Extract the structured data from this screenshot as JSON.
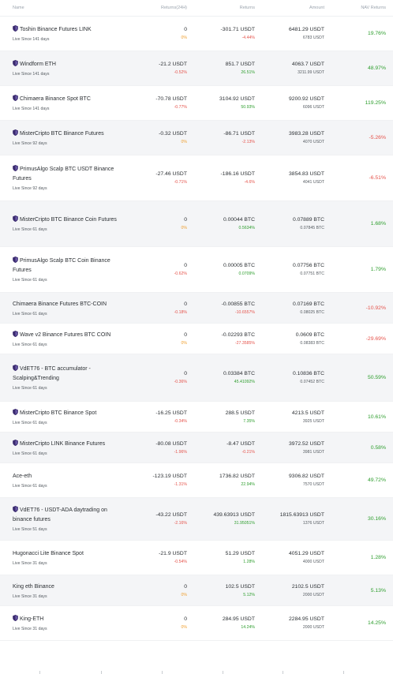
{
  "header": {
    "name": "Name",
    "returns_24h": "Returns(24H)",
    "returns": "Returns",
    "amount": "Amount",
    "nav_returns": "NAV Returns"
  },
  "rows": [
    {
      "name": "Toshin Binance Futures LINK",
      "icon": true,
      "live": "Live Since 141 days",
      "ret24": "0",
      "ret24_pct": "0%",
      "ret24_cls": "zero",
      "ret": "-301.71 USDT",
      "ret_pct": "-4.44%",
      "ret_cls": "neg",
      "amount": "6481.29 USDT",
      "amount_sub": "6783 USDT",
      "nav": "19.76%",
      "nav_cls": "pos"
    },
    {
      "name": "Windform ETH",
      "icon": true,
      "live": "Live Since 141 days",
      "ret24": "-21.2 USDT",
      "ret24_pct": "-0.52%",
      "ret24_cls": "neg",
      "ret": "851.7 USDT",
      "ret_pct": "26.51%",
      "ret_cls": "pos",
      "amount": "4063.7 USDT",
      "amount_sub": "3211.99 USDT",
      "nav": "48.97%",
      "nav_cls": "pos"
    },
    {
      "name": "Chimaera Binance Spot BTC",
      "icon": true,
      "live": "Live Since 141 days",
      "ret24": "-70.78 USDT",
      "ret24_pct": "-0.77%",
      "ret24_cls": "neg",
      "ret": "3104.92 USDT",
      "ret_pct": "50.93%",
      "ret_cls": "pos",
      "amount": "9200.92 USDT",
      "amount_sub": "6096 USDT",
      "nav": "119.25%",
      "nav_cls": "pos"
    },
    {
      "name": "MisterCripto BTC Binance Futures",
      "icon": true,
      "live": "Live Since 92 days",
      "ret24": "-0.32 USDT",
      "ret24_pct": "0%",
      "ret24_cls": "zero",
      "ret": "-86.71 USDT",
      "ret_pct": "-2.13%",
      "ret_cls": "neg",
      "amount": "3983.28 USDT",
      "amount_sub": "4070 USDT",
      "nav": "-5.26%",
      "nav_cls": "neg"
    },
    {
      "name": "PrimusAlgo Scalp BTC USDT Binance Futures",
      "icon": true,
      "live": "Live Since 92 days",
      "ret24": "-27.46 USDT",
      "ret24_pct": "-0.71%",
      "ret24_cls": "neg",
      "ret": "-186.16 USDT",
      "ret_pct": "-4.6%",
      "ret_cls": "neg",
      "amount": "3854.83 USDT",
      "amount_sub": "4041 USDT",
      "nav": "-6.51%",
      "nav_cls": "neg"
    },
    {
      "name": "MisterCripto BTC Binance Coin Futures",
      "icon": true,
      "live": "Live Since 61 days",
      "ret24": "0",
      "ret24_pct": "0%",
      "ret24_cls": "zero",
      "ret": "0.00044 BTC",
      "ret_pct": "0.5634%",
      "ret_cls": "pos",
      "amount": "0.07889 BTC",
      "amount_sub": "0.07845 BTC",
      "nav": "1.68%",
      "nav_cls": "pos"
    },
    {
      "name": "PrimusAlgo Scalp BTC Coin Binance Futures",
      "icon": true,
      "live": "Live Since 61 days",
      "ret24": "0",
      "ret24_pct": "-0.62%",
      "ret24_cls": "neg",
      "ret": "0.00005 BTC",
      "ret_pct": "0.0709%",
      "ret_cls": "pos",
      "amount": "0.07756 BTC",
      "amount_sub": "0.07751 BTC",
      "nav": "1.79%",
      "nav_cls": "pos"
    },
    {
      "name": "Chimaera Binance Futures BTC-COIN",
      "icon": false,
      "live": "Live Since 61 days",
      "ret24": "0",
      "ret24_pct": "-0.18%",
      "ret24_cls": "neg",
      "ret": "-0.00855 BTC",
      "ret_pct": "-10.6557%",
      "ret_cls": "neg",
      "amount": "0.07169 BTC",
      "amount_sub": "0.08025 BTC",
      "nav": "-10.92%",
      "nav_cls": "neg"
    },
    {
      "name": "Wave v2 Binance Futures BTC COIN",
      "icon": true,
      "live": "Live Since 61 days",
      "ret24": "0",
      "ret24_pct": "0%",
      "ret24_cls": "zero",
      "ret": "-0.02293 BTC",
      "ret_pct": "-27.3585%",
      "ret_cls": "neg",
      "amount": "0.0609 BTC",
      "amount_sub": "0.08383 BTC",
      "nav": "-29.69%",
      "nav_cls": "neg"
    },
    {
      "name": "VdET76 - BTC accumulator - Scalping&Trending",
      "icon": true,
      "live": "Live Since 61 days",
      "ret24": "0",
      "ret24_pct": "-0.36%",
      "ret24_cls": "neg",
      "ret": "0.03384 BTC",
      "ret_pct": "45.41092%",
      "ret_cls": "pos",
      "amount": "0.10836 BTC",
      "amount_sub": "0.07452 BTC",
      "nav": "50.59%",
      "nav_cls": "pos"
    },
    {
      "name": "MisterCripto BTC Binance Spot",
      "icon": true,
      "live": "Live Since 61 days",
      "ret24": "-16.25 USDT",
      "ret24_pct": "-0.34%",
      "ret24_cls": "neg",
      "ret": "288.5 USDT",
      "ret_pct": "7.35%",
      "ret_cls": "pos",
      "amount": "4213.5 USDT",
      "amount_sub": "3925 USDT",
      "nav": "10.61%",
      "nav_cls": "pos"
    },
    {
      "name": "MisterCripto LINK Binance Futures",
      "icon": true,
      "live": "Live Since 61 days",
      "ret24": "-80.08 USDT",
      "ret24_pct": "-1.96%",
      "ret24_cls": "neg",
      "ret": "-8.47 USDT",
      "ret_pct": "-0.21%",
      "ret_cls": "neg",
      "amount": "3972.52 USDT",
      "amount_sub": "3981 USDT",
      "nav": "0.58%",
      "nav_cls": "pos"
    },
    {
      "name": "Ace-eth",
      "icon": false,
      "live": "Live Since 61 days",
      "ret24": "-123.19 USDT",
      "ret24_pct": "-1.31%",
      "ret24_cls": "neg",
      "ret": "1736.82 USDT",
      "ret_pct": "22.94%",
      "ret_cls": "pos",
      "amount": "9306.82 USDT",
      "amount_sub": "7570 USDT",
      "nav": "49.72%",
      "nav_cls": "pos"
    },
    {
      "name": "VdET76 - USDT-ADA daytrading on binance futures",
      "icon": true,
      "live": "Live Since 51 days",
      "ret24": "-43.22 USDT",
      "ret24_pct": "-2.16%",
      "ret24_cls": "neg",
      "ret": "439.63913 USDT",
      "ret_pct": "31.95051%",
      "ret_cls": "pos",
      "amount": "1815.63913 USDT",
      "amount_sub": "1376 USDT",
      "nav": "30.16%",
      "nav_cls": "pos"
    },
    {
      "name": "Hugonacci Lite Binance Spot",
      "icon": false,
      "live": "Live Since 31 days",
      "ret24": "-21.9 USDT",
      "ret24_pct": "-0.54%",
      "ret24_cls": "neg",
      "ret": "51.29 USDT",
      "ret_pct": "1.28%",
      "ret_cls": "pos",
      "amount": "4051.29 USDT",
      "amount_sub": "4000 USDT",
      "nav": "1.28%",
      "nav_cls": "pos"
    },
    {
      "name": "King eth Binance",
      "icon": false,
      "live": "Live Since 31 days",
      "ret24": "0",
      "ret24_pct": "0%",
      "ret24_cls": "zero",
      "ret": "102.5 USDT",
      "ret_pct": "5.12%",
      "ret_cls": "pos",
      "amount": "2102.5 USDT",
      "amount_sub": "2000 USDT",
      "nav": "5.13%",
      "nav_cls": "pos"
    },
    {
      "name": "King-ETH",
      "icon": true,
      "live": "Live Since 31 days",
      "ret24": "0",
      "ret24_pct": "0%",
      "ret24_cls": "zero",
      "ret": "284.95 USDT",
      "ret_pct": "14.24%",
      "ret_cls": "pos",
      "amount": "2284.95 USDT",
      "amount_sub": "2000 USDT",
      "nav": "14.25%",
      "nav_cls": "pos"
    }
  ],
  "colors": {
    "positive": "#2e9e2e",
    "negative": "#e5534b",
    "zero": "#f0a030",
    "shield": "#3a2a6e"
  }
}
